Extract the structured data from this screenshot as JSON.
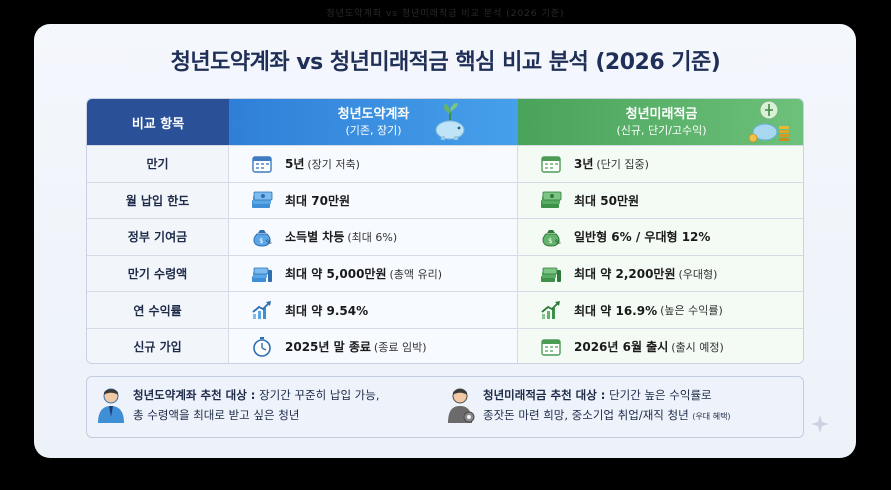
{
  "top_bar": "청년도약계좌 vs 청년미래적금 비교 분석 (2026 기준)",
  "title": "청년도약계좌 vs 청년미래적금 핵심 비교 분석 (2026 기준)",
  "table": {
    "header_label": "비교 항목",
    "col_a": {
      "title": "청년도약계좌",
      "sub": "(기존, 장기)"
    },
    "col_b": {
      "title": "청년미래적금",
      "sub": "(신규, 단기/고수익)"
    },
    "rows": [
      {
        "label": "만기",
        "a": "5년",
        "a_note": "(장기 저축)",
        "b": "3년",
        "b_note": "(단기 집중)",
        "icon": "calendar-icon"
      },
      {
        "label": "월 납입 한도",
        "a": "최대 70만원",
        "a_note": "",
        "b": "최대 50만원",
        "b_note": "",
        "icon": "money-stack-icon"
      },
      {
        "label": "정부 기여금",
        "a": "소득별 차등",
        "a_note": "(최대 6%)",
        "b": "일반형 6% / 우대형 12%",
        "b_note": "",
        "icon": "money-bag-icon"
      },
      {
        "label": "만기 수령액",
        "a": "최대 약 5,000만원",
        "a_note": "(총액 유리)",
        "b": "최대 약 2,200만원",
        "b_note": "(우대형)",
        "icon": "cash-pile-icon"
      },
      {
        "label": "연 수익률",
        "a": "최대 약 9.54%",
        "a_note": "",
        "b": "최대 약 16.9%",
        "b_note": "(높은 수익률)",
        "icon": "trend-up-icon"
      },
      {
        "label": "신규 가입",
        "a": "2025년 말 종료",
        "a_note": "(종료 임박)",
        "b": "2026년 6월 출시",
        "b_note": "(출시 예정)",
        "icon": "stopwatch-icon"
      }
    ]
  },
  "recommend": {
    "a_head": "청년도약계좌 추천 대상 :",
    "a_body1": " 장기간 꾸준히 납입 가능,",
    "a_body2": "총 수령액을 최대로 받고 싶은 청년",
    "b_head": "청년미래적금 추천 대상 :",
    "b_body1": " 단기간 높은 수익률로",
    "b_body2": "종잣돈 마련 희망, 중소기업 취업/재직 청년",
    "b_tiny": "(우대 혜택)"
  },
  "colors": {
    "navy": "#2a5198",
    "blue": "#3b8fe0",
    "green": "#56ad64"
  }
}
